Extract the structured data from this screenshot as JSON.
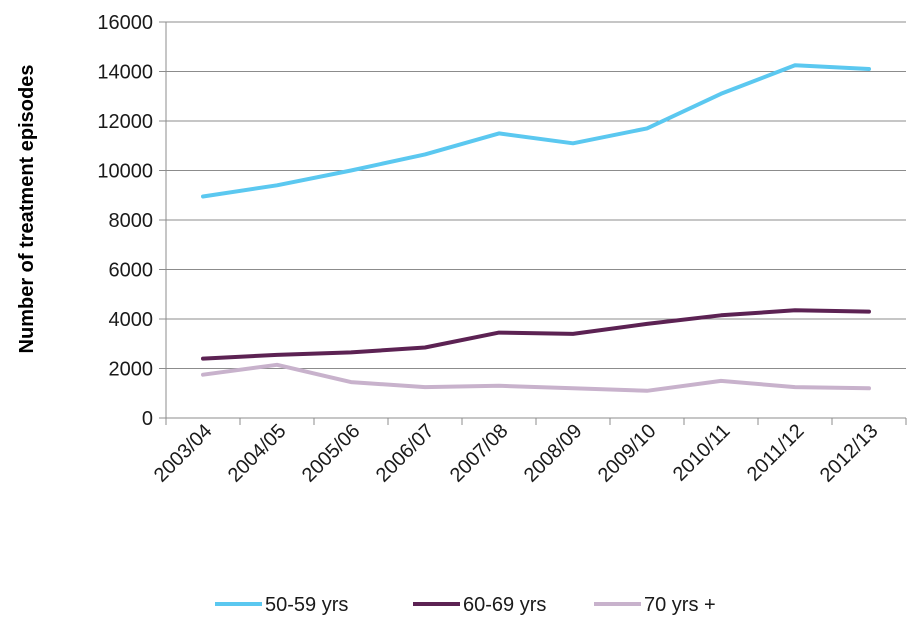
{
  "chart_data": {
    "type": "line",
    "title": "",
    "xlabel": "",
    "ylabel": "Number of treatment episodes",
    "ylim": [
      0,
      16000
    ],
    "yticks": [
      0,
      2000,
      4000,
      6000,
      8000,
      10000,
      12000,
      14000,
      16000
    ],
    "grid": true,
    "legend_position": "bottom",
    "categories": [
      "2003/04",
      "2004/05",
      "2005/06",
      "2006/07",
      "2007/08",
      "2008/09",
      "2009/10",
      "2010/11",
      "2011/12",
      "2012/13"
    ],
    "series": [
      {
        "name": "50-59 yrs",
        "color": "#5BC8F0",
        "values": [
          8950,
          9400,
          10000,
          10650,
          11500,
          11100,
          11700,
          13100,
          14250,
          14100
        ]
      },
      {
        "name": "60-69 yrs",
        "color": "#5C2253",
        "values": [
          2400,
          2550,
          2650,
          2850,
          3450,
          3400,
          3800,
          4150,
          4350,
          4300
        ]
      },
      {
        "name": "70 yrs +",
        "color": "#C8B2CC",
        "values": [
          1750,
          2150,
          1450,
          1250,
          1300,
          1200,
          1100,
          1500,
          1250,
          1200
        ]
      }
    ]
  }
}
